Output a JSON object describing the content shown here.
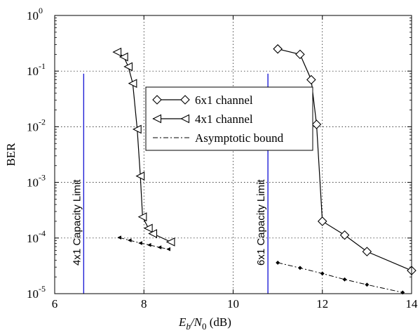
{
  "chart_data": {
    "type": "line",
    "xlabel_main": "E",
    "xlabel_sub": "b",
    "xlabel_slash": "/N",
    "xlabel_sub2": "0",
    "xlabel_unit": " (dB)",
    "ylabel": "BER",
    "xlim": [
      6,
      14
    ],
    "ylim_log10": [
      -5,
      0
    ],
    "log_scale_y": true,
    "grid": true,
    "x_ticks": [
      "6",
      "8",
      "10",
      "12",
      "14"
    ],
    "y_tick_base": "10",
    "y_tick_exponents": [
      "0",
      "-1",
      "-2",
      "-3",
      "-4",
      "-5"
    ],
    "legend_position": "center",
    "series": [
      {
        "name": "6x1 channel",
        "marker": "diamond",
        "line": "solid",
        "color": "#000000",
        "x": [
          11.0,
          11.5,
          11.75,
          11.87,
          12.0,
          12.5,
          13.0,
          14.0
        ],
        "y": [
          0.25,
          0.2,
          0.07,
          0.011,
          0.0002,
          0.000113,
          5.7e-05,
          2.6e-05
        ]
      },
      {
        "name": "4x1 channel",
        "marker": "triangle-left",
        "line": "solid",
        "color": "#000000",
        "x": [
          7.4,
          7.55,
          7.65,
          7.75,
          7.85,
          7.92,
          7.97,
          8.1,
          8.2,
          8.6
        ],
        "y": [
          0.22,
          0.18,
          0.12,
          0.06,
          0.009,
          0.0013,
          0.00024,
          0.00015,
          0.00012,
          8.5e-05
        ]
      },
      {
        "name": "Asymptotic bound",
        "marker": "none",
        "line": "dash-dot",
        "color": "#000000",
        "segments": [
          {
            "x": [
              7.45,
              7.68,
              7.92,
              8.12,
              8.35,
              8.55
            ],
            "y": [
              0.000102,
              9.1e-05,
              8.1e-05,
              7.5e-05,
              6.8e-05,
              6.3e-05
            ],
            "point_marker": "triangle-left"
          },
          {
            "x": [
              11.0,
              11.5,
              12.0,
              12.5,
              13.0,
              13.8
            ],
            "y": [
              3.6e-05,
              2.9e-05,
              2.3e-05,
              1.8e-05,
              1.45e-05,
              1.05e-05
            ],
            "point_marker": "diamond"
          }
        ]
      }
    ],
    "capacity_limits": [
      {
        "label": "4x1 Capacity Limit",
        "x": 6.65,
        "y_top": 0.09,
        "color": "#1f1fd6"
      },
      {
        "label": "6x1 Capacity Limit",
        "x": 10.78,
        "y_top": 0.09,
        "color": "#1f1fd6"
      }
    ]
  }
}
